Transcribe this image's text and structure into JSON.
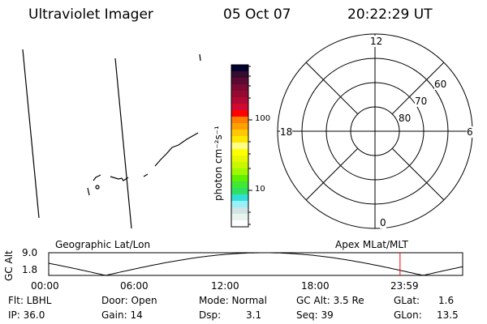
{
  "header": {
    "instrument": "Ultraviolet Imager",
    "date": "05 Oct 07",
    "time": "20:22:29 UT"
  },
  "colorbar": {
    "label": "photon cm⁻²s⁻¹",
    "ticks": [
      "100",
      "10"
    ],
    "colors": [
      "#00002e",
      "#380a30",
      "#5a0a32",
      "#7a0a32",
      "#960a32",
      "#b00a32",
      "#d00a32",
      "#ff0000",
      "#ff8000",
      "#ffa000",
      "#ffc800",
      "#ffe800",
      "#ffff88",
      "#ffff00",
      "#e8f800",
      "#c8f800",
      "#a0f800",
      "#60f000",
      "#40e838",
      "#30e060",
      "#30e0d8",
      "#98f0f8",
      "#d0e4e4",
      "#e8f4ee",
      "#ffffff"
    ]
  },
  "polar": {
    "mlt_labels": [
      "12",
      "6",
      "0",
      "18"
    ],
    "lat_labels": [
      "60",
      "70",
      "80"
    ]
  },
  "timeline": {
    "left_label": "Geographic Lat/Lon",
    "right_label": "Apex MLat/MLT",
    "ylabel": "GC Alt",
    "yticks": [
      "9.0",
      "1.8"
    ],
    "xticks": [
      "00:00",
      "06:00",
      "12:00",
      "18:00",
      "23:59"
    ],
    "current_time_hours": 20.37,
    "marker_color": "#ff0000"
  },
  "status": {
    "row1": [
      "Flt: LBHL",
      "Door: Open",
      "Mode: Normal",
      "GC Alt: 3.5 Re",
      "GLat:",
      "1.6"
    ],
    "row2": [
      "IP: 36.0",
      "Gain: 14",
      "Dsp:",
      "3.1",
      "Seq: 39",
      "GLon:",
      "13.5"
    ]
  }
}
